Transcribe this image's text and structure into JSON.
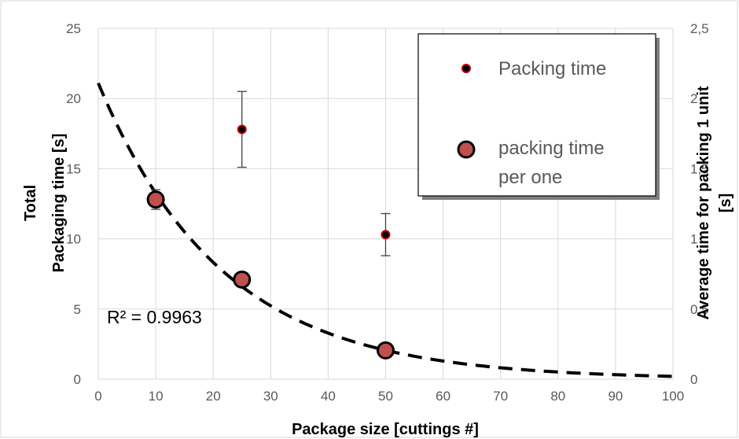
{
  "chart_data": {
    "type": "scatter",
    "xlabel": "Package size [cuttings #]",
    "ylabel_lines": [
      "Total",
      "Packaging time [s]"
    ],
    "y2label_lines": [
      "Average time for packing 1 unit",
      "[s]"
    ],
    "xlim": [
      0,
      100
    ],
    "ylim": [
      0,
      25
    ],
    "y2lim": [
      0,
      2.5
    ],
    "x_ticks": [
      "0",
      "10",
      "20",
      "30",
      "40",
      "50",
      "60",
      "70",
      "80",
      "90",
      "100"
    ],
    "y_ticks": [
      "0",
      "5",
      "10",
      "15",
      "20",
      "25"
    ],
    "y2_ticks": [
      "0",
      "0,5",
      "1",
      "1,5",
      "2",
      "2,5"
    ],
    "grid": true,
    "legend_position": "top-right",
    "series": [
      {
        "name": "Packing time",
        "axis": "left",
        "marker": "small-dot",
        "points": [
          {
            "x": 10,
            "y": 12.8,
            "err": 0.7
          },
          {
            "x": 25,
            "y": 17.8,
            "err": 2.7
          },
          {
            "x": 50,
            "y": 10.3,
            "err": 1.5
          }
        ]
      },
      {
        "name": "packing time per one",
        "axis": "right",
        "marker": "large-dot",
        "points": [
          {
            "x": 10,
            "y": 1.28
          },
          {
            "x": 25,
            "y": 0.71
          },
          {
            "x": 50,
            "y": 0.205
          }
        ]
      }
    ],
    "trendline": {
      "axis": "right",
      "style": "dashed",
      "type": "exponential",
      "a": 2.11,
      "b": -0.0465,
      "r2_label": "R² = 0.9963"
    },
    "colors": {
      "marker_fill": "#c0504d",
      "marker_edge": "#000000",
      "small_marker_fill": "#000000",
      "small_marker_edge": "#c00000",
      "grid": "#d9d9d9",
      "errorbar": "#404040",
      "trendline": "#000000"
    }
  }
}
